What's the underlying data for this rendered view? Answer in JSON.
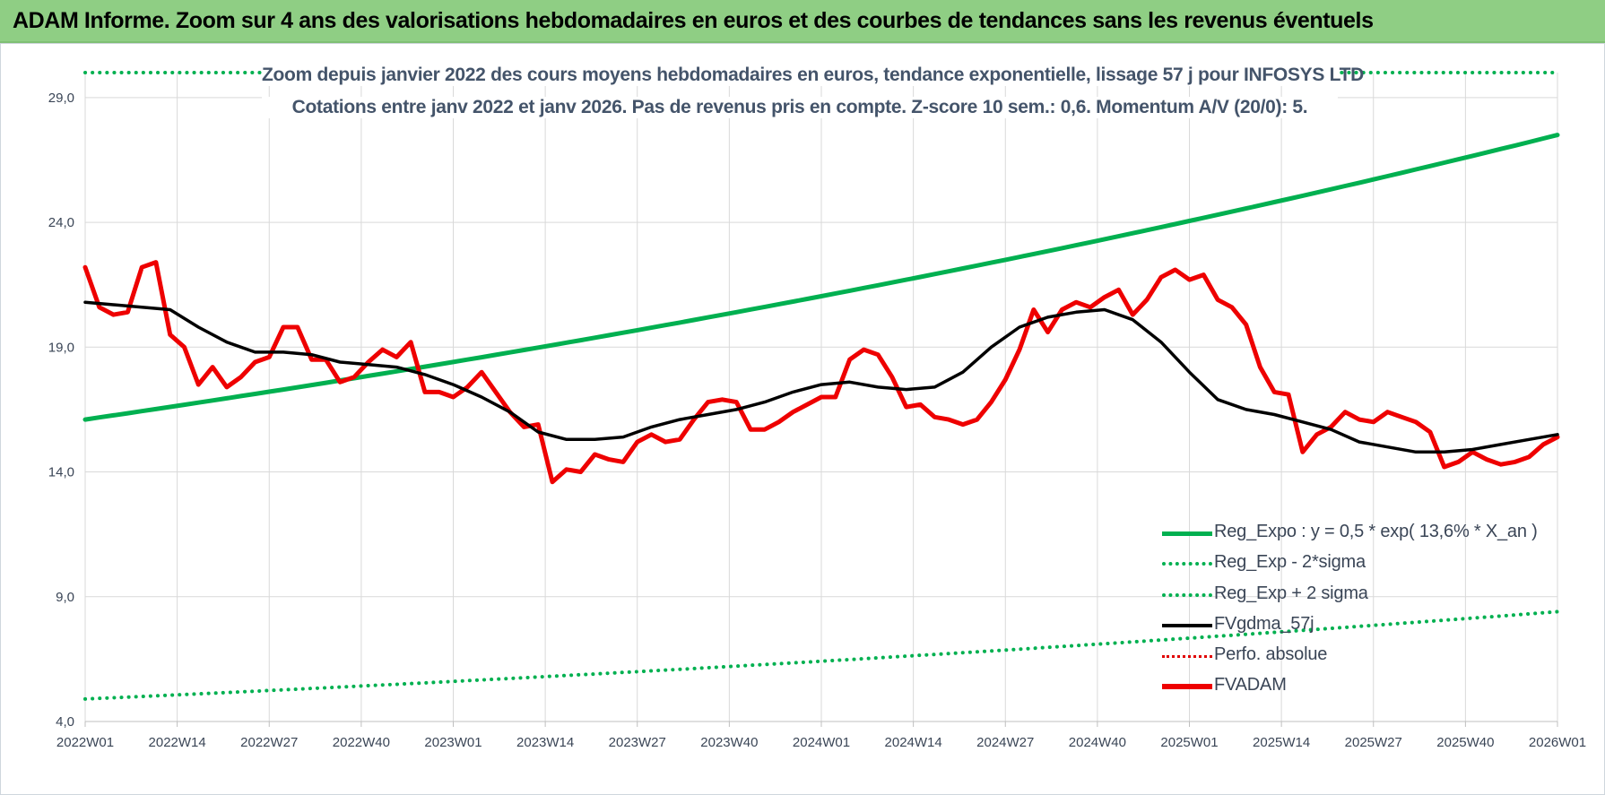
{
  "header": {
    "title": "ADAM Informe. Zoom sur 4 ans des valorisations hebdomadaires en euros et des courbes de tendances sans les revenus éventuels"
  },
  "chart_data": {
    "type": "line",
    "title": "Zoom depuis janvier 2022 des cours moyens hebdomadaires en euros, tendance exponentielle, lissage 57 j pour INFOSYS LTD",
    "subtitle": "Cotations entre janv 2022 et janv 2026. Pas de revenus pris en compte. Z-score 10 sem.: 0,6. Momentum A/V (20/0): 5.",
    "xlabel": "",
    "ylabel": "",
    "ylim": [
      4,
      30
    ],
    "grid": true,
    "legend_position": "bottom-right",
    "y_ticks": [
      "4,0",
      "9,0",
      "14,0",
      "19,0",
      "24,0",
      "29,0"
    ],
    "x_ticks": [
      "2022W01",
      "2022W14",
      "2022W27",
      "2022W40",
      "2023W01",
      "2023W14",
      "2023W27",
      "2023W40",
      "2024W01",
      "2024W14",
      "2024W27",
      "2024W40",
      "2025W01",
      "2025W14",
      "2025W27",
      "2025W40",
      "2026W01"
    ],
    "x_index_range": [
      0,
      208
    ],
    "series": [
      {
        "name": "Reg_Expo : y = 0,5 * exp( 13,6% *  X_an )",
        "color": "#00b050",
        "style": "solid",
        "x": [
          0,
          208
        ],
        "y": [
          16.1,
          27.5
        ],
        "curve": "exponential"
      },
      {
        "name": "Reg_Exp - 2*sigma",
        "color": "#00b050",
        "style": "dotted",
        "x": [
          0,
          208
        ],
        "y": [
          4.9,
          8.4
        ],
        "curve": "exponential"
      },
      {
        "name": "Reg_Exp + 2 sigma",
        "color": "#00b050",
        "style": "dotted",
        "x": [
          0,
          208
        ],
        "y": [
          30.0,
          30.0
        ]
      },
      {
        "name": "FVgdma_57j",
        "color": "#000000",
        "style": "solid",
        "x": [
          0,
          4,
          8,
          12,
          16,
          20,
          24,
          28,
          32,
          36,
          40,
          44,
          48,
          52,
          56,
          60,
          64,
          68,
          72,
          76,
          80,
          84,
          88,
          92,
          96,
          100,
          104,
          108,
          112,
          116,
          120,
          124,
          128,
          132,
          136,
          140,
          144,
          148,
          152,
          156,
          160,
          164,
          168,
          172,
          176,
          180,
          184,
          188,
          192,
          196,
          200,
          204,
          208
        ],
        "y": [
          20.8,
          20.7,
          20.6,
          20.5,
          19.8,
          19.2,
          18.8,
          18.8,
          18.7,
          18.4,
          18.3,
          18.2,
          17.9,
          17.5,
          17.0,
          16.4,
          15.6,
          15.3,
          15.3,
          15.4,
          15.8,
          16.1,
          16.3,
          16.5,
          16.8,
          17.2,
          17.5,
          17.6,
          17.4,
          17.3,
          17.4,
          18.0,
          19.0,
          19.8,
          20.2,
          20.4,
          20.5,
          20.1,
          19.2,
          18.0,
          16.9,
          16.5,
          16.3,
          16.0,
          15.7,
          15.2,
          15.0,
          14.8,
          14.8,
          14.9,
          15.1,
          15.3,
          15.5
        ]
      },
      {
        "name": "Perfo. absolue",
        "color": "#e00000",
        "style": "dotted",
        "x": [],
        "y": []
      },
      {
        "name": "FVADAM",
        "color": "#ee0000",
        "style": "solid",
        "x": [
          0,
          2,
          4,
          6,
          8,
          10,
          12,
          14,
          16,
          18,
          20,
          22,
          24,
          26,
          28,
          30,
          32,
          34,
          36,
          38,
          40,
          42,
          44,
          46,
          48,
          50,
          52,
          54,
          56,
          58,
          60,
          62,
          64,
          66,
          68,
          70,
          72,
          74,
          76,
          78,
          80,
          82,
          84,
          86,
          88,
          90,
          92,
          94,
          96,
          98,
          100,
          102,
          104,
          106,
          108,
          110,
          112,
          114,
          116,
          118,
          120,
          122,
          124,
          126,
          128,
          130,
          132,
          134,
          136,
          138,
          140,
          142,
          144,
          146,
          148,
          150,
          152,
          154,
          156,
          158,
          160,
          162,
          164,
          166,
          168,
          170,
          172,
          174,
          176,
          178,
          180,
          182,
          184,
          186,
          188,
          190,
          192,
          194,
          196,
          198,
          200,
          202,
          204,
          206,
          208
        ],
        "y": [
          22.2,
          20.6,
          20.3,
          20.4,
          22.2,
          22.4,
          19.5,
          19.0,
          17.5,
          18.2,
          17.4,
          17.8,
          18.4,
          18.6,
          19.8,
          19.8,
          18.5,
          18.5,
          17.6,
          17.8,
          18.4,
          18.9,
          18.6,
          19.2,
          17.2,
          17.2,
          17.0,
          17.4,
          18.0,
          17.2,
          16.4,
          15.8,
          15.9,
          13.6,
          14.1,
          14.0,
          14.7,
          14.5,
          14.4,
          15.2,
          15.5,
          15.2,
          15.3,
          16.1,
          16.8,
          16.9,
          16.8,
          15.7,
          15.7,
          16.0,
          16.4,
          16.7,
          17.0,
          17.0,
          18.5,
          18.9,
          18.7,
          17.8,
          16.6,
          16.7,
          16.2,
          16.1,
          15.9,
          16.1,
          16.8,
          17.7,
          18.9,
          20.5,
          19.6,
          20.5,
          20.8,
          20.6,
          21.0,
          21.3,
          20.3,
          20.9,
          21.8,
          22.1,
          21.7,
          21.9,
          20.9,
          20.6,
          19.9,
          18.2,
          17.2,
          17.1,
          14.8,
          15.5,
          15.8,
          16.4,
          16.1,
          16.0,
          16.4,
          16.2,
          16.0,
          15.6,
          14.2,
          14.4,
          14.8,
          14.5,
          14.3,
          14.4,
          14.6,
          15.1,
          15.4
        ]
      }
    ]
  }
}
